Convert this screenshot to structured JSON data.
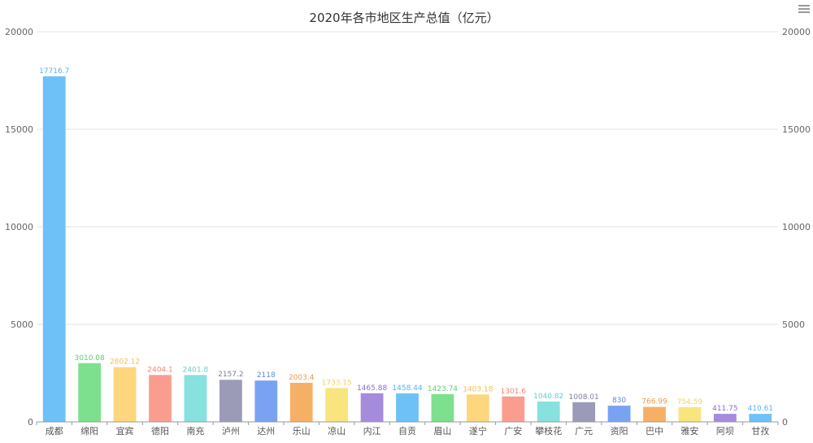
{
  "chart_data": {
    "type": "bar",
    "title": "2020年各市地区生产总值（亿元）",
    "xlabel": "",
    "ylabel": "",
    "ylim": [
      0,
      20000
    ],
    "yticks": [
      0,
      5000,
      10000,
      15000,
      20000
    ],
    "yticks_right": [
      0,
      5000,
      10000,
      15000,
      20000
    ],
    "grid": true,
    "categories": [
      "成都",
      "绵阳",
      "宜宾",
      "德阳",
      "南充",
      "泸州",
      "达州",
      "乐山",
      "凉山",
      "内江",
      "自贡",
      "眉山",
      "遂宁",
      "广安",
      "攀枝花",
      "广元",
      "资阳",
      "巴中",
      "雅安",
      "阿坝",
      "甘孜"
    ],
    "values": [
      17716.7,
      3010.08,
      2802.12,
      2404.1,
      2401.8,
      2157.2,
      2118,
      2003.4,
      1733.15,
      1465.88,
      1458.44,
      1423.74,
      1403.18,
      1301.6,
      1040.82,
      1008.01,
      830,
      766.99,
      754.59,
      411.75,
      410.61
    ],
    "value_labels": [
      "17716.7",
      "3010.08",
      "2802.12",
      "2404.1",
      "2401.8",
      "2157.2",
      "2118",
      "2003.4",
      "1733.15",
      "1465.88",
      "1458.44",
      "1423.74",
      "1403.18",
      "1301.6",
      "1040.82",
      "1008.01",
      "830",
      "766.99",
      "754.59",
      "411.75",
      "410.61"
    ],
    "colors": [
      "#6ec1f7",
      "#7de08f",
      "#fed67d",
      "#fb9d8e",
      "#86e1df",
      "#9b9bb8",
      "#7aa2f2",
      "#f6b066",
      "#f8e57d",
      "#a48bdc",
      "#6ec1f7",
      "#7de08f",
      "#fed67d",
      "#fb9d8e",
      "#86e1df",
      "#9b9bb8",
      "#7aa2f2",
      "#f6b066",
      "#f8e57d",
      "#a48bdc",
      "#6ec1f7"
    ],
    "label_colors": [
      "#5ab3ee",
      "#5fcf72",
      "#f2c05b",
      "#f48575",
      "#64cfcb",
      "#7f7f9e",
      "#5d87e6",
      "#ee9947",
      "#eed562",
      "#8a6fcc",
      "#5ab3ee",
      "#5fcf72",
      "#f2c05b",
      "#f48575",
      "#64cfcb",
      "#7f7f9e",
      "#5d87e6",
      "#ee9947",
      "#eed562",
      "#8a6fcc",
      "#5ab3ee"
    ]
  },
  "toolbox": {
    "icon": "menu-icon"
  }
}
